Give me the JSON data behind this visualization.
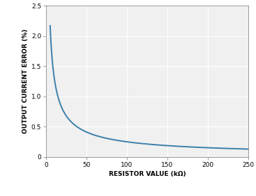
{
  "title": "",
  "xlabel": "RESISTOR VALUE (kΩ)",
  "ylabel": "OUTPUT CURRENT ERROR (%)",
  "xlim": [
    0,
    250
  ],
  "ylim": [
    0,
    2.5
  ],
  "xticks": [
    0,
    50,
    100,
    150,
    200,
    250
  ],
  "yticks": [
    0,
    0.5,
    1.0,
    1.5,
    2.0,
    2.5
  ],
  "line_color": "#3a7faa",
  "line_width": 1.4,
  "bg_color": "#ffffff",
  "plot_bg_color": "#f0f0f0",
  "grid_color": "#ffffff",
  "x_start": 5,
  "x_end": 250,
  "A": 6.96,
  "n": 0.724,
  "label_fontsize": 6.5,
  "tick_fontsize": 6.5,
  "spine_color": "#888888"
}
